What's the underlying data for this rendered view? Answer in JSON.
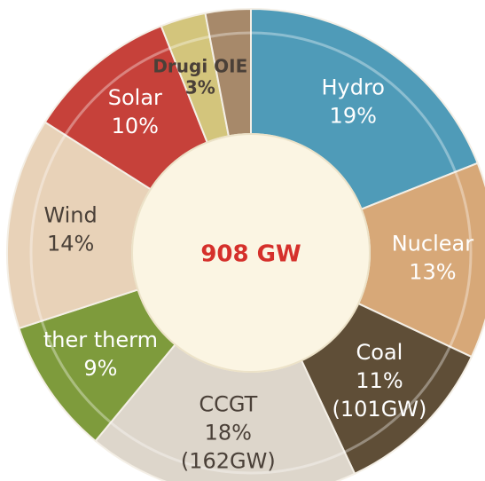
{
  "chart_data": {
    "type": "donut",
    "center_label": "908 GW",
    "categories": [
      "Hydro",
      "Nuclear",
      "Coal",
      "CCGT",
      "ther therm",
      "Wind",
      "Solar",
      "Drugi OIE",
      null
    ],
    "values": [
      19,
      13,
      11,
      18,
      9,
      14,
      10,
      3,
      3
    ],
    "value_labels": [
      "19%",
      "13%",
      "11%",
      "18%",
      "9%",
      "14%",
      "10%",
      "3%",
      null
    ],
    "details": [
      null,
      null,
      "(101GW)",
      "(162GW)",
      null,
      null,
      null,
      null,
      null
    ],
    "colors": [
      "#4f9bb8",
      "#d7a878",
      "#5f4e37",
      "#ddd6cb",
      "#7e9b3c",
      "#e8d2b8",
      "#c6413a",
      "#d3c57c",
      "#a7896a"
    ]
  }
}
